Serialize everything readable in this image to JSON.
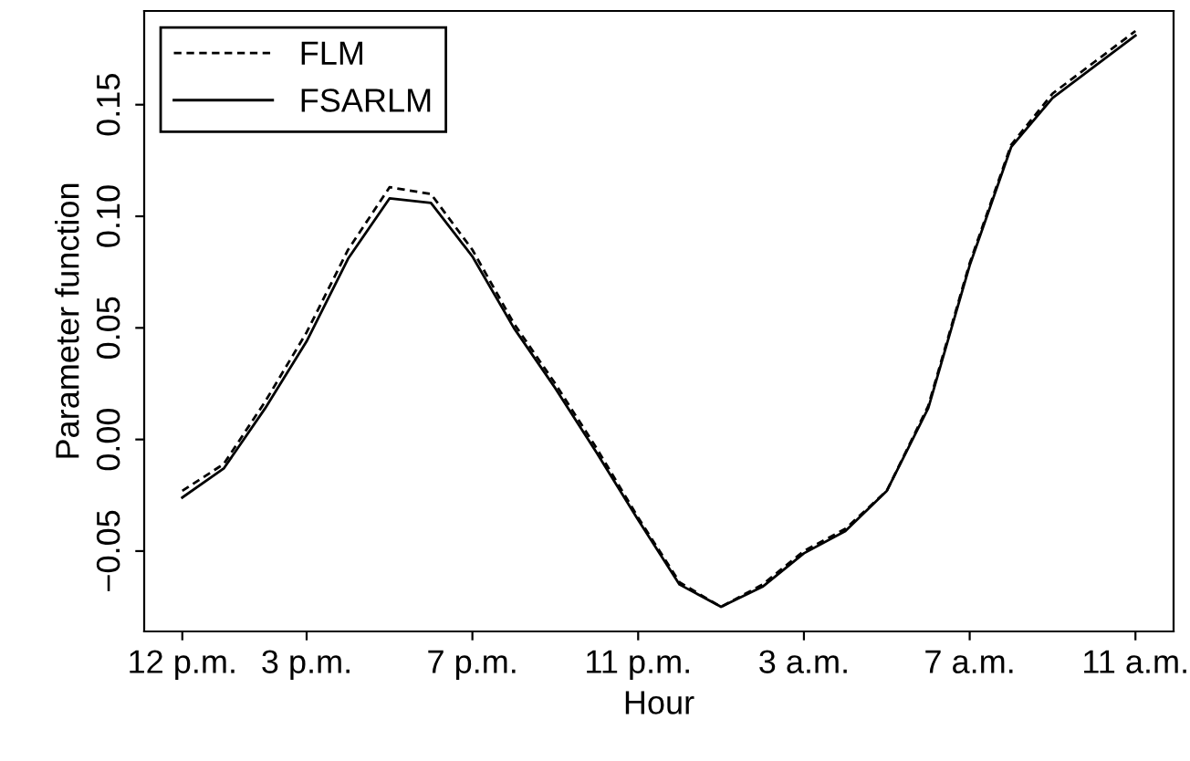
{
  "chart_data": {
    "type": "line",
    "xlabel": "Hour",
    "ylabel": "Parameter function",
    "categories": [
      "12 p.m.",
      null,
      null,
      "3 p.m.",
      null,
      null,
      null,
      "7 p.m.",
      null,
      null,
      null,
      "11 p.m.",
      null,
      null,
      null,
      "3 a.m.",
      null,
      null,
      null,
      "7 a.m.",
      null,
      null,
      null,
      "11 a.m."
    ],
    "series": [
      {
        "name": "FLM",
        "color": "#000000",
        "line_style": "dashed",
        "values": [
          -0.023,
          -0.011,
          0.017,
          0.048,
          0.085,
          0.113,
          0.11,
          0.085,
          0.052,
          0.025,
          -0.004,
          -0.035,
          -0.064,
          -0.075,
          -0.065,
          -0.05,
          -0.04,
          -0.023,
          0.015,
          0.079,
          0.132,
          0.155,
          0.169,
          0.183
        ]
      },
      {
        "name": "FSARLM",
        "color": "#000000",
        "line_style": "solid",
        "values": [
          -0.026,
          -0.013,
          0.014,
          0.044,
          0.081,
          0.108,
          0.106,
          0.082,
          0.05,
          0.023,
          -0.006,
          -0.036,
          -0.065,
          -0.075,
          -0.066,
          -0.051,
          -0.041,
          -0.023,
          0.014,
          0.078,
          0.131,
          0.153,
          0.167,
          0.181
        ]
      }
    ],
    "ylim": [
      -0.086,
      0.192
    ],
    "yticks": [
      {
        "value": -0.05,
        "label": "−0.05"
      },
      {
        "value": 0,
        "label": "0.00"
      },
      {
        "value": 0.05,
        "label": "0.05"
      },
      {
        "value": 0.1,
        "label": "0.10"
      },
      {
        "value": 0.15,
        "label": "0.15"
      }
    ],
    "grid": false,
    "legend": "top left",
    "marker": "none"
  }
}
